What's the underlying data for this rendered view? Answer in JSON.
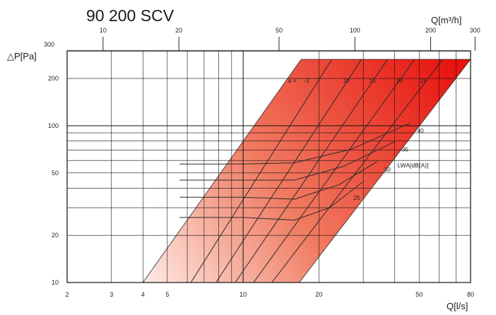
{
  "chart_data": {
    "type": "line",
    "title": "90 200 SCV",
    "xlabel": "Q[l/s]",
    "x2label": "Q[m³/h]",
    "ylabel": "△P[Pa]",
    "x_scale": "log",
    "y_scale": "log",
    "xlim": [
      2,
      80
    ],
    "ylim": [
      10,
      300
    ],
    "x_ticks": [
      "2",
      "3",
      "4",
      "5",
      "10",
      "20",
      "50",
      "80"
    ],
    "x2_ticks": [
      "10",
      "20",
      "50",
      "100",
      "200",
      "300"
    ],
    "y_ticks": [
      "10",
      "20",
      "50",
      "100",
      "200",
      "300"
    ],
    "grid": true,
    "colors": {
      "fill_light": "#fbe3dc",
      "fill_mid": "#f07a60",
      "fill_dark": "#e8120e",
      "grid": "#111111",
      "line": "#2a2a2a"
    },
    "operating_area": [
      [
        4,
        10
      ],
      [
        16.7,
        10
      ],
      [
        80,
        265
      ],
      [
        17,
        265
      ]
    ],
    "damper_label_prefix": "a = ",
    "damper_lines": [
      {
        "label": "-3",
        "points": [
          [
            6.2,
            10
          ],
          [
            22.5,
            265
          ]
        ]
      },
      {
        "label": "10",
        "points": [
          [
            7.8,
            10
          ],
          [
            29.5,
            265
          ]
        ]
      },
      {
        "label": "15",
        "points": [
          [
            9.3,
            10
          ],
          [
            37.5,
            265
          ]
        ]
      },
      {
        "label": "20",
        "points": [
          [
            11.0,
            10
          ],
          [
            48.0,
            265
          ]
        ]
      },
      {
        "label": "25",
        "points": [
          [
            13.0,
            10
          ],
          [
            62.0,
            265
          ]
        ]
      }
    ],
    "sound_legend": "LWA[dB(A)]",
    "sound_lines": [
      {
        "label": "25",
        "points": [
          [
            5.6,
            26
          ],
          [
            10,
            26
          ],
          [
            16,
            25
          ],
          [
            22,
            30
          ],
          [
            30,
            44
          ]
        ]
      },
      {
        "label": "30",
        "points": [
          [
            5.6,
            35
          ],
          [
            10,
            35
          ],
          [
            16,
            34
          ],
          [
            24,
            42
          ],
          [
            34,
            59
          ]
        ]
      },
      {
        "label": "35",
        "points": [
          [
            5.6,
            45
          ],
          [
            10,
            45
          ],
          [
            16,
            45
          ],
          [
            25,
            55
          ],
          [
            40,
            79
          ]
        ]
      },
      {
        "label": "40",
        "points": [
          [
            5.6,
            57
          ],
          [
            10,
            57
          ],
          [
            16,
            58
          ],
          [
            27,
            71
          ],
          [
            46,
            104
          ]
        ]
      }
    ]
  }
}
